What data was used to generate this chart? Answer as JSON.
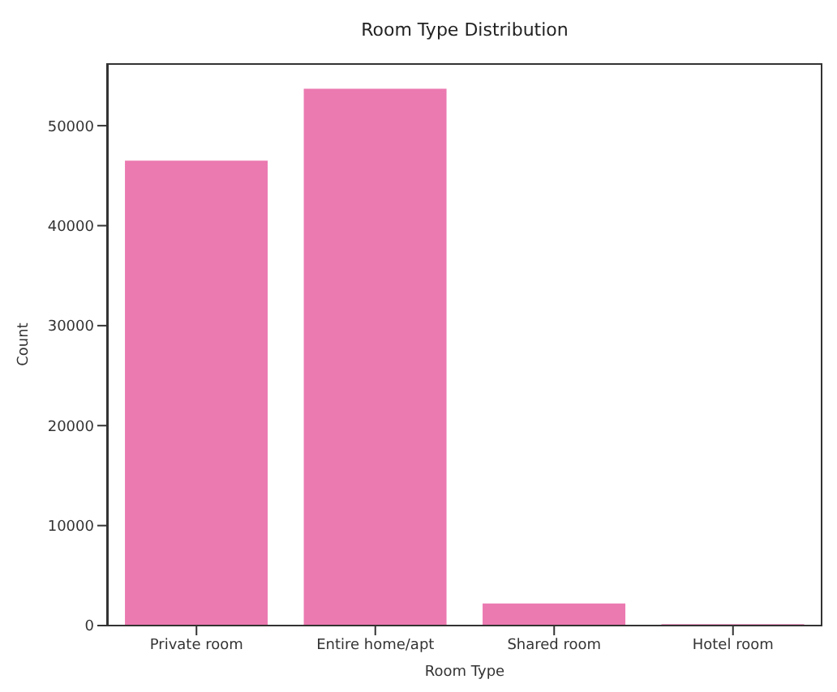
{
  "chart_data": {
    "type": "bar",
    "title": "Room Type Distribution",
    "xlabel": "Room Type",
    "ylabel": "Count",
    "categories": [
      "Private room",
      "Entire home/apt",
      "Shared room",
      "Hotel room"
    ],
    "values": [
      46500,
      53700,
      2200,
      150
    ],
    "color": "#eb7ab1",
    "ylim": [
      0,
      56250
    ],
    "yticks": [
      0,
      10000,
      20000,
      30000,
      40000,
      50000
    ],
    "grid": false,
    "legend": false
  }
}
